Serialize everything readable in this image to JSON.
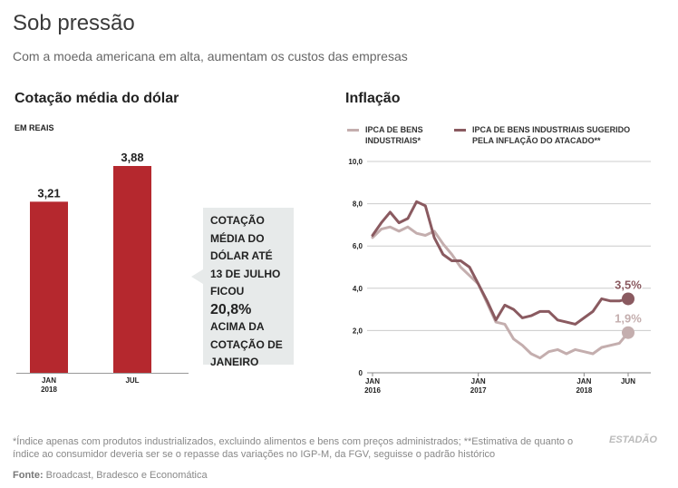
{
  "header": {
    "title": "Sob pressão",
    "subtitle": "Com a moeda americana em alta, aumentam os custos das empresas"
  },
  "dollar": {
    "section_title": "Cotação média do dólar",
    "unit_label": "EM REAIS",
    "callout": {
      "lines_before": [
        "COTAÇÃO",
        "MÉDIA DO",
        "DÓLAR ATÉ",
        "13 DE JULHO",
        "FICOU"
      ],
      "highlight": "20,8%",
      "lines_after": [
        "ACIMA DA",
        "COTAÇÃO DE",
        "JANEIRO"
      ]
    }
  },
  "inflation": {
    "section_title": "Inflação",
    "legend": [
      {
        "line1": "IPCA DE BENS",
        "line2": "INDUSTRIAIS*"
      },
      {
        "line1": "IPCA DE BENS INDUSTRIAIS SUGERIDO",
        "line2": "PELA INFLAÇÃO DO ATACADO**"
      }
    ]
  },
  "footnote": "*Índice apenas com produtos industrializados, excluindo alimentos e bens com preços administrados; **Estimativa de quanto o índice ao consumidor deveria ser se o repasse das variações no IGP-M, da FGV, seguisse o padrão histórico",
  "source": {
    "label": "Fonte:",
    "text": "Broadcast, Bradesco e Economática"
  },
  "brand": "ESTADÃO",
  "colors": {
    "bar": "#b5282e",
    "light_series": "#c4aeae",
    "dark_series": "#8a5a60",
    "grid": "#cccccc"
  },
  "chart_data": [
    {
      "type": "bar",
      "title": "Cotação média do dólar",
      "ylabel": "EM REAIS",
      "categories": [
        "JAN 2018",
        "JUL"
      ],
      "category_labels": [
        [
          "JAN",
          "2018"
        ],
        [
          "JUL",
          ""
        ]
      ],
      "values": [
        3.21,
        3.88
      ],
      "value_labels": [
        "3,21",
        "3,88"
      ],
      "ylim": [
        0,
        3.88
      ]
    },
    {
      "type": "line",
      "title": "Inflação",
      "ylim": [
        0,
        10
      ],
      "yticks": [
        0,
        2,
        4,
        6,
        8,
        10
      ],
      "ytick_labels": [
        "0",
        "2,0",
        "4,0",
        "6,0",
        "8,0",
        "10,0"
      ],
      "xticks": [
        0,
        12,
        24,
        29
      ],
      "xtick_labels": [
        [
          "JAN",
          "2016"
        ],
        [
          "JAN",
          "2017"
        ],
        [
          "JAN",
          "2018"
        ],
        [
          "JUN",
          ""
        ]
      ],
      "x": [
        0,
        1,
        2,
        3,
        4,
        5,
        6,
        7,
        8,
        9,
        10,
        11,
        12,
        13,
        14,
        15,
        16,
        17,
        18,
        19,
        20,
        21,
        22,
        23,
        24,
        25,
        26,
        27,
        28,
        29
      ],
      "series": [
        {
          "name": "IPCA DE BENS INDUSTRIAIS*",
          "values": [
            6.4,
            6.8,
            6.9,
            6.7,
            6.9,
            6.6,
            6.5,
            6.7,
            6.1,
            5.6,
            5.0,
            4.6,
            4.2,
            3.3,
            2.4,
            2.3,
            1.6,
            1.3,
            0.9,
            0.7,
            1.0,
            1.1,
            0.9,
            1.1,
            1.0,
            0.9,
            1.2,
            1.3,
            1.4,
            1.9
          ],
          "end_label": "1,9%"
        },
        {
          "name": "IPCA DE BENS INDUSTRIAIS SUGERIDO PELA INFLAÇÃO DO ATACADO**",
          "values": [
            6.5,
            7.1,
            7.6,
            7.1,
            7.3,
            8.1,
            7.9,
            6.4,
            5.6,
            5.3,
            5.3,
            5.0,
            4.2,
            3.4,
            2.5,
            3.2,
            3.0,
            2.6,
            2.7,
            2.9,
            2.9,
            2.5,
            2.4,
            2.3,
            2.6,
            2.9,
            3.5,
            3.4,
            3.4,
            3.5
          ],
          "end_label": "3,5%"
        }
      ]
    }
  ]
}
